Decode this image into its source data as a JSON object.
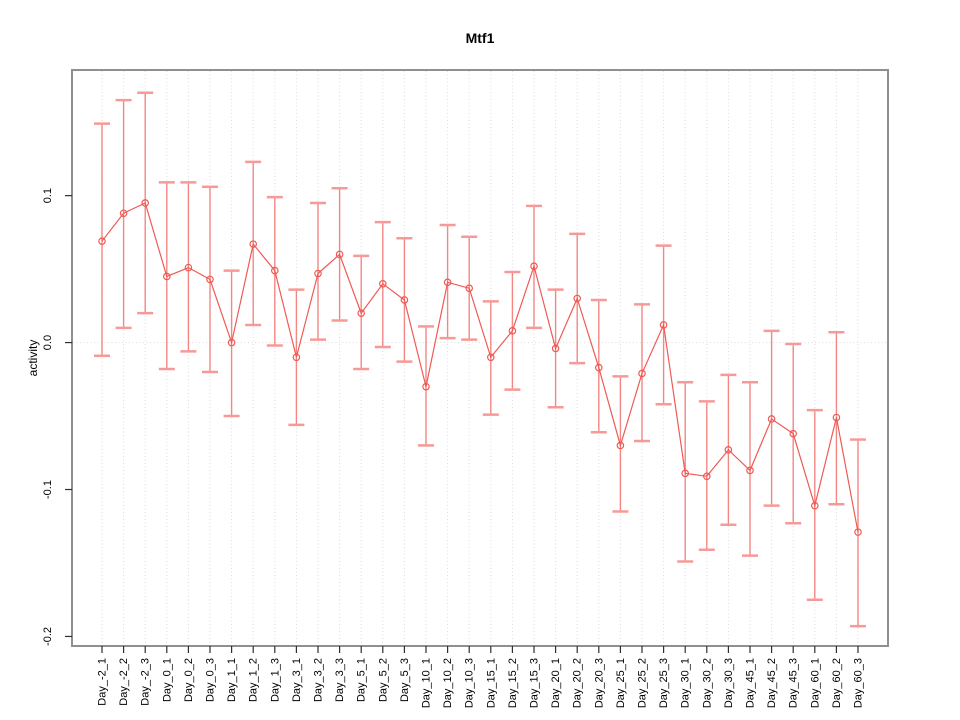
{
  "chart_data": {
    "type": "line-errorbar",
    "title": "Mtf1",
    "xlabel": "",
    "ylabel": "activity",
    "legend": "none",
    "grid": "vertical-dotted-per-category-plus-dotted-zero-line",
    "ylim": [
      -0.2065,
      0.1855
    ],
    "yticks": [
      0.1,
      0.0,
      -0.1,
      -0.2
    ],
    "ytick_labels": [
      "0.1",
      "0.0",
      "-0.1",
      "-0.2"
    ],
    "categories": [
      "Day_-2_1",
      "Day_-2_2",
      "Day_-2_3",
      "Day_0_1",
      "Day_0_2",
      "Day_0_3",
      "Day_1_1",
      "Day_1_2",
      "Day_1_3",
      "Day_3_1",
      "Day_3_2",
      "Day_3_3",
      "Day_5_1",
      "Day_5_2",
      "Day_5_3",
      "Day_10_1",
      "Day_10_2",
      "Day_10_3",
      "Day_15_1",
      "Day_15_2",
      "Day_15_3",
      "Day_20_1",
      "Day_20_2",
      "Day_20_3",
      "Day_25_1",
      "Day_25_2",
      "Day_25_3",
      "Day_30_1",
      "Day_30_2",
      "Day_30_3",
      "Day_45_1",
      "Day_45_2",
      "Day_45_3",
      "Day_60_1",
      "Day_60_2",
      "Day_60_3"
    ],
    "series": [
      {
        "name": "mean",
        "values": [
          0.069,
          0.088,
          0.095,
          0.045,
          0.051,
          0.043,
          0.0,
          0.067,
          0.049,
          -0.01,
          0.047,
          0.06,
          0.02,
          0.04,
          0.029,
          -0.03,
          0.041,
          0.037,
          -0.01,
          0.008,
          0.052,
          -0.004,
          0.03,
          -0.017,
          -0.07,
          -0.021,
          0.012,
          -0.089,
          -0.091,
          -0.073,
          -0.087,
          -0.052,
          -0.062,
          -0.111,
          -0.051,
          -0.129
        ]
      },
      {
        "name": "lower",
        "values": [
          -0.009,
          0.01,
          0.02,
          -0.018,
          -0.006,
          -0.02,
          -0.05,
          0.012,
          -0.002,
          -0.056,
          0.002,
          0.015,
          -0.018,
          -0.003,
          -0.013,
          -0.07,
          0.003,
          0.002,
          -0.049,
          -0.032,
          0.01,
          -0.044,
          -0.014,
          -0.061,
          -0.115,
          -0.067,
          -0.042,
          -0.149,
          -0.141,
          -0.124,
          -0.145,
          -0.111,
          -0.123,
          -0.175,
          -0.11,
          -0.193
        ]
      },
      {
        "name": "upper",
        "values": [
          0.149,
          0.165,
          0.17,
          0.109,
          0.109,
          0.106,
          0.049,
          0.123,
          0.099,
          0.036,
          0.095,
          0.105,
          0.059,
          0.082,
          0.071,
          0.011,
          0.08,
          0.072,
          0.028,
          0.048,
          0.093,
          0.036,
          0.074,
          0.029,
          -0.023,
          0.026,
          0.066,
          -0.027,
          -0.04,
          -0.022,
          -0.027,
          0.008,
          -0.001,
          -0.046,
          0.007,
          -0.066
        ]
      }
    ],
    "colors": {
      "series": "#f0625d",
      "series_line": "#ef5a55",
      "error_cap": "#f79a97",
      "grid": "#dcdcdc",
      "box": "#8f8f8f",
      "tick": "#2f2f2f",
      "text": "#000000",
      "background": "#ffffff"
    }
  }
}
